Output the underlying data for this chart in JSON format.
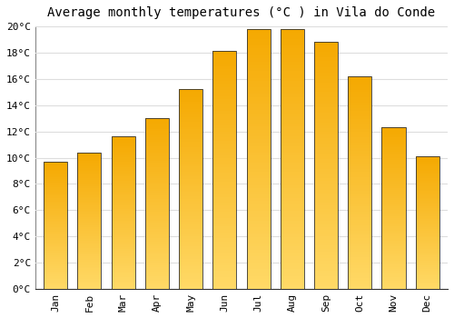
{
  "title": "Average monthly temperatures (°C ) in Vila do Conde",
  "months": [
    "Jan",
    "Feb",
    "Mar",
    "Apr",
    "May",
    "Jun",
    "Jul",
    "Aug",
    "Sep",
    "Oct",
    "Nov",
    "Dec"
  ],
  "values": [
    9.7,
    10.4,
    11.6,
    13.0,
    15.2,
    18.1,
    19.8,
    19.8,
    18.8,
    16.2,
    12.3,
    10.1
  ],
  "bar_color_top": "#F5A800",
  "bar_color_bottom": "#FFD966",
  "bar_edge_color": "#333333",
  "background_color": "#FFFFFF",
  "plot_bg_color": "#FFFFFF",
  "grid_color": "#DDDDDD",
  "ylim": [
    0,
    20
  ],
  "ytick_step": 2,
  "title_fontsize": 10,
  "tick_fontsize": 8,
  "tick_font_family": "monospace",
  "bar_width": 0.7
}
